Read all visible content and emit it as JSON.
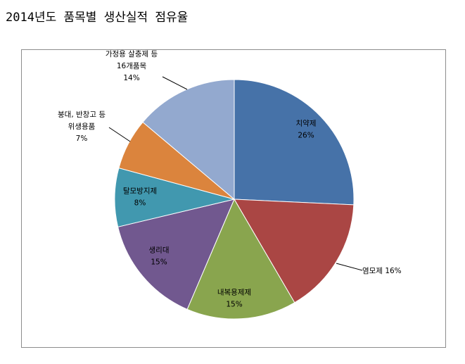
{
  "page": {
    "title": "2014년도 품목별 생산실적 점유율"
  },
  "chart_data": {
    "type": "pie",
    "title": "",
    "start_angle_deg": 0,
    "direction": "clockwise",
    "slices": [
      {
        "label_lines": [
          "치약제",
          "26%"
        ],
        "value": 26,
        "color": "#4672A8"
      },
      {
        "label_lines": [
          "염모제 16%"
        ],
        "value": 16,
        "color": "#AA4644"
      },
      {
        "label_lines": [
          "내복용제제",
          "15%"
        ],
        "value": 15,
        "color": "#89A54E"
      },
      {
        "label_lines": [
          "생리대",
          "15%"
        ],
        "value": 15,
        "color": "#71588F"
      },
      {
        "label_lines": [
          "탈모방지제",
          "8%"
        ],
        "value": 8,
        "color": "#4198AF"
      },
      {
        "label_lines": [
          "붕대, 반창고 등",
          "위생용품",
          "7%"
        ],
        "value": 7,
        "color": "#DB843D"
      },
      {
        "label_lines": [
          "가정용 살충제 등",
          "16개품목",
          "14%"
        ],
        "value": 14,
        "color": "#93A9CF"
      }
    ]
  }
}
